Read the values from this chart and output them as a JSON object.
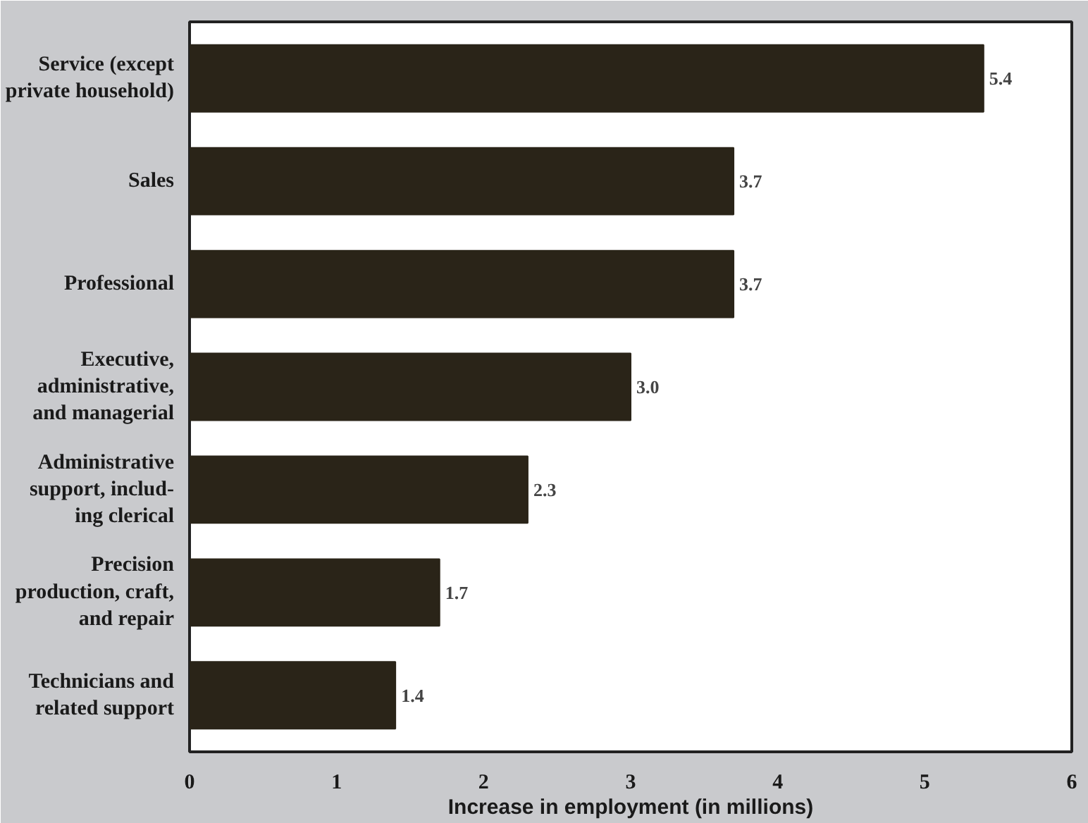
{
  "chart_data": {
    "type": "bar",
    "orientation": "horizontal",
    "xlabel": "Increase in employment (in millions)",
    "categories": [
      "Service (except\nprivate household)",
      "Sales",
      "Professional",
      "Executive,\nadministrative,\nand managerial",
      "Administrative\nsupport, includ-\ning clerical",
      "Precision\nproduction, craft,\nand repair",
      "Technicians and\nrelated support"
    ],
    "values": [
      5.4,
      3.7,
      3.7,
      3.0,
      2.3,
      1.7,
      1.4
    ],
    "value_labels": [
      "5.4",
      "3.7",
      "3.7",
      "3.0",
      "2.3",
      "1.7",
      "1.4"
    ],
    "color": "#2a2418",
    "xlim": [
      0,
      6
    ],
    "xticks": [
      0,
      1,
      2,
      3,
      4,
      5,
      6
    ]
  }
}
